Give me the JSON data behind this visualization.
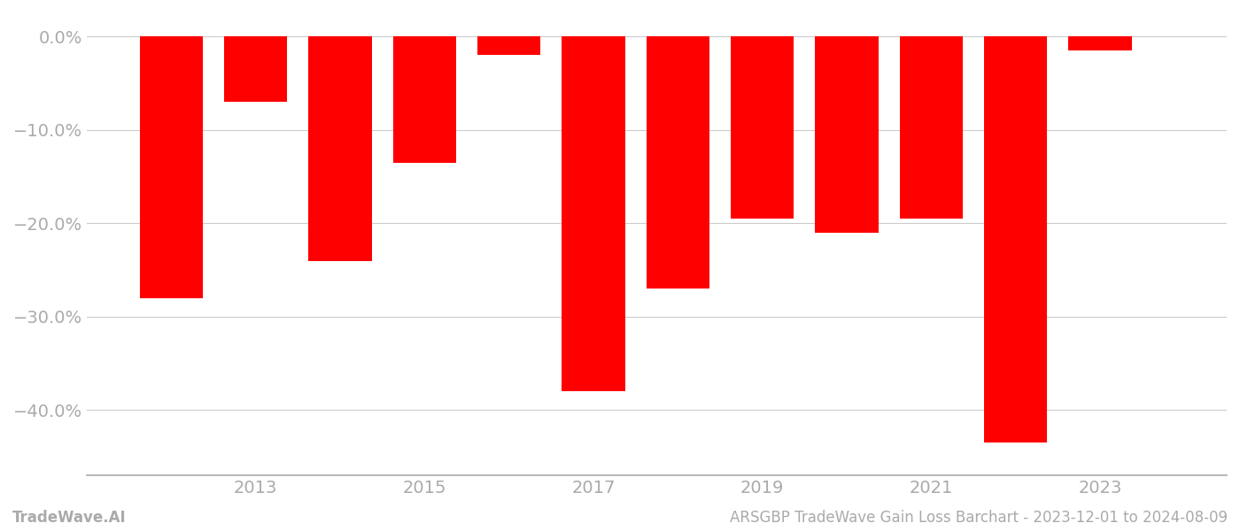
{
  "years": [
    2012,
    2013,
    2014,
    2015,
    2016,
    2017,
    2018,
    2019,
    2020,
    2021,
    2022,
    2023
  ],
  "values": [
    -28.0,
    -7.0,
    -24.0,
    -13.5,
    -2.0,
    -38.0,
    -27.0,
    -19.5,
    -21.0,
    -19.5,
    -43.5,
    -1.5
  ],
  "bar_color": "#ff0000",
  "bar_width": 0.75,
  "ylim": [
    -47,
    2.5
  ],
  "yticks": [
    0.0,
    -10.0,
    -20.0,
    -30.0,
    -40.0
  ],
  "xtick_years": [
    2013,
    2015,
    2017,
    2019,
    2021,
    2023
  ],
  "xlim_left": 2011.0,
  "xlim_right": 2024.5,
  "footer_left": "TradeWave.AI",
  "footer_right": "ARSGBP TradeWave Gain Loss Barchart - 2023-12-01 to 2024-08-09",
  "grid_color": "#cccccc",
  "axis_color": "#aaaaaa",
  "tick_label_color": "#aaaaaa",
  "background_color": "#ffffff",
  "font_size_ticks": 14,
  "font_size_footer": 12
}
